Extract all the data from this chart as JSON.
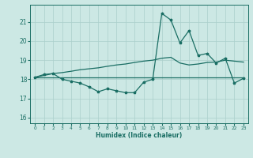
{
  "xlabel": "Humidex (Indice chaleur)",
  "xlim": [
    -0.5,
    23.5
  ],
  "ylim": [
    15.7,
    21.9
  ],
  "yticks": [
    16,
    17,
    18,
    19,
    20,
    21
  ],
  "xticks": [
    0,
    1,
    2,
    3,
    4,
    5,
    6,
    7,
    8,
    9,
    10,
    11,
    12,
    13,
    14,
    15,
    16,
    17,
    18,
    19,
    20,
    21,
    22,
    23
  ],
  "bg_color": "#cce8e4",
  "grid_color": "#aacfcb",
  "line_color": "#1a6e64",
  "jagged_y": [
    18.1,
    18.25,
    18.3,
    18.0,
    17.9,
    17.8,
    17.6,
    17.35,
    17.5,
    17.4,
    17.3,
    17.3,
    17.85,
    18.0,
    21.45,
    21.1,
    19.9,
    20.55,
    19.25,
    19.35,
    18.85,
    19.1,
    17.8,
    18.05
  ],
  "trend_y": [
    18.1,
    18.2,
    18.3,
    18.35,
    18.42,
    18.5,
    18.55,
    18.6,
    18.68,
    18.75,
    18.8,
    18.88,
    18.95,
    19.0,
    19.1,
    19.15,
    18.85,
    18.75,
    18.8,
    18.88,
    18.9,
    19.0,
    18.95,
    18.9
  ],
  "flat_y": 18.1
}
